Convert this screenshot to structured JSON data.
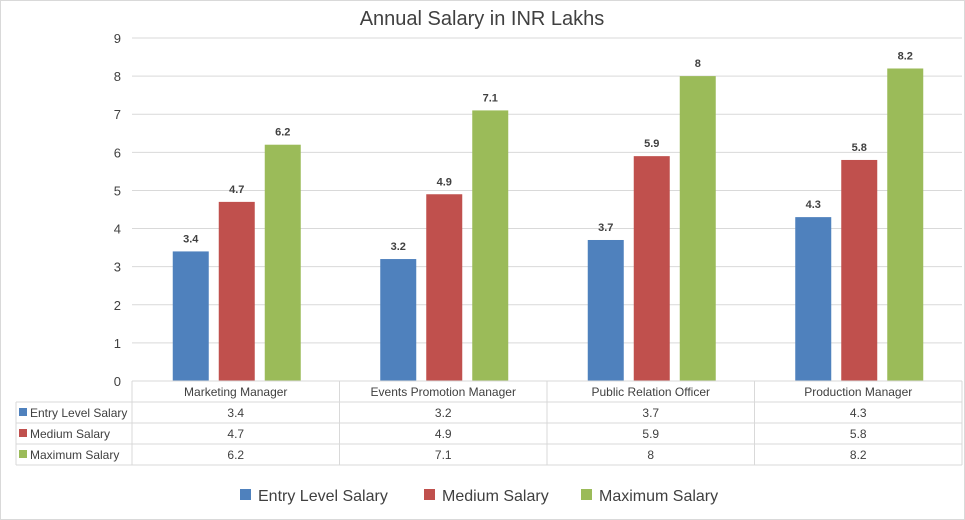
{
  "chart_data": {
    "type": "bar",
    "title": "Annual Salary in INR Lakhs",
    "categories": [
      "Marketing Manager",
      "Events Promotion Manager",
      "Public Relation Officer",
      "Production Manager"
    ],
    "series": [
      {
        "name": "Entry Level Salary",
        "color": "#4f81bd",
        "values": [
          3.4,
          3.2,
          3.7,
          4.3
        ]
      },
      {
        "name": "Medium Salary",
        "color": "#c0504d",
        "values": [
          4.7,
          4.9,
          5.9,
          5.8
        ]
      },
      {
        "name": "Maximum Salary",
        "color": "#9bbb59",
        "values": [
          6.2,
          7.1,
          8,
          8.2
        ]
      }
    ],
    "ylim": [
      0,
      9
    ],
    "yticks": [
      0,
      1,
      2,
      3,
      4,
      5,
      6,
      7,
      8,
      9
    ],
    "xlabel": "",
    "ylabel": "",
    "grid": true,
    "data_labels": true,
    "data_table": true,
    "legend": "bottom"
  }
}
